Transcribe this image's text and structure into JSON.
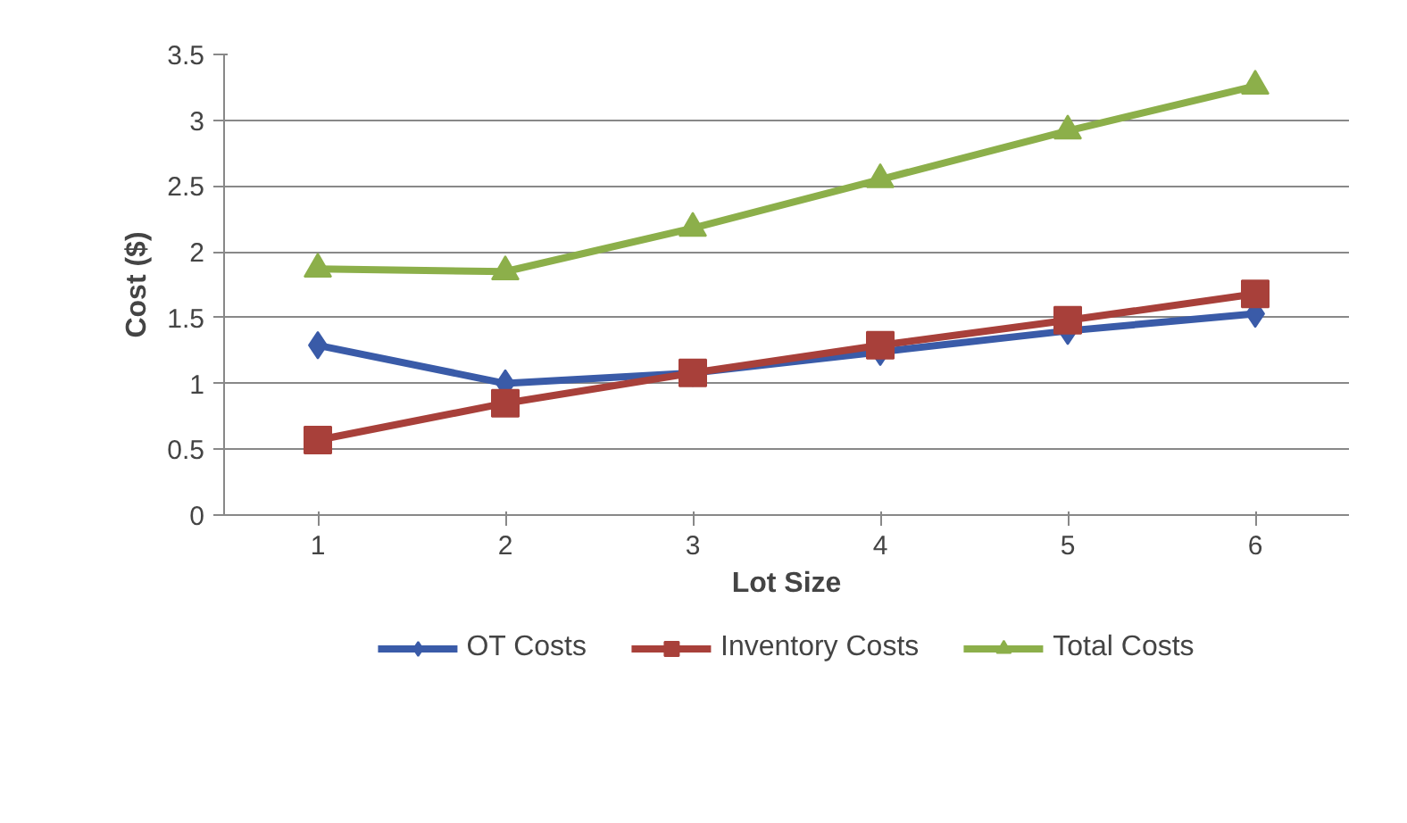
{
  "chart_data": {
    "type": "line",
    "xlabel": "Lot Size",
    "ylabel": "Cost ($)",
    "categories": [
      "1",
      "2",
      "3",
      "4",
      "5",
      "6"
    ],
    "ylim": [
      0,
      3.5
    ],
    "yticks": [
      0,
      0.5,
      1,
      1.5,
      2,
      2.5,
      3,
      3.5
    ],
    "grid": "y",
    "legend": "bottom",
    "series": [
      {
        "name": "OT Costs",
        "color": "#3a5ba8",
        "marker": "diamond",
        "values": [
          1.29,
          1.0,
          1.08,
          1.24,
          1.4,
          1.53
        ]
      },
      {
        "name": "Inventory Costs",
        "color": "#a8403a",
        "marker": "square",
        "values": [
          0.57,
          0.85,
          1.08,
          1.29,
          1.48,
          1.68
        ]
      },
      {
        "name": "Total Costs",
        "color": "#8caf4a",
        "marker": "triangle",
        "values": [
          1.87,
          1.85,
          2.18,
          2.55,
          2.92,
          3.26
        ]
      }
    ]
  }
}
